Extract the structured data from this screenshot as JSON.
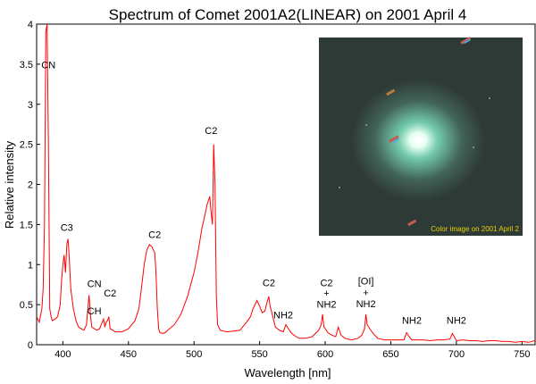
{
  "chart_data": {
    "type": "line",
    "title": "Spectrum of Comet 2001A2(LINEAR) on 2001 April 4",
    "xlabel": "Wavelength [nm]",
    "ylabel": "Relative intensity",
    "xlim": [
      380,
      760
    ],
    "ylim": [
      0,
      4
    ],
    "x_ticks": [
      400,
      450,
      500,
      550,
      600,
      650,
      700,
      750
    ],
    "y_ticks": [
      0,
      0.5,
      1,
      1.5,
      2,
      2.5,
      3,
      3.5,
      4
    ],
    "y_tick_labels": [
      "0",
      "0.5",
      "1",
      "1.5",
      "2",
      "2.5",
      "3",
      "3.5",
      "4"
    ],
    "grid": false,
    "legend": "none",
    "line_color": "#ff0000",
    "series": [
      {
        "x": [
          380,
          382,
          384,
          385,
          386,
          387,
          388,
          389,
          390,
          391,
          392,
          394,
          396,
          398,
          399,
          400,
          401,
          402,
          403,
          404,
          405,
          406,
          408,
          410,
          412,
          414,
          416,
          418,
          420,
          421,
          422,
          424,
          426,
          428,
          430,
          431,
          432,
          433,
          434,
          435,
          436,
          438,
          440,
          445,
          450,
          455,
          458,
          460,
          462,
          464,
          466,
          468,
          469,
          470,
          471,
          472,
          473,
          474,
          476,
          478,
          480,
          485,
          490,
          495,
          500,
          503,
          506,
          508,
          510,
          511,
          512,
          513,
          514,
          515,
          516,
          517,
          518,
          520,
          525,
          530,
          535,
          540,
          543,
          545,
          548,
          550,
          552,
          554,
          556,
          557,
          558,
          559,
          560,
          562,
          565,
          568,
          570,
          572,
          574,
          576,
          578,
          580,
          585,
          590,
          595,
          597,
          598,
          599,
          600,
          602,
          605,
          608,
          610,
          612,
          615,
          620,
          625,
          628,
          630,
          631,
          632,
          634,
          636,
          640,
          645,
          650,
          655,
          660,
          662,
          664,
          666,
          670,
          675,
          680,
          685,
          690,
          695,
          697,
          700,
          705,
          710,
          715,
          720,
          725,
          730,
          735,
          740,
          745,
          750,
          755,
          760
        ],
        "y": [
          0.35,
          0.28,
          0.45,
          0.7,
          1.5,
          3.9,
          4.5,
          2.5,
          0.45,
          0.35,
          0.3,
          0.32,
          0.35,
          0.5,
          0.8,
          1.0,
          1.12,
          0.9,
          1.25,
          1.32,
          1.05,
          0.7,
          0.45,
          0.3,
          0.22,
          0.2,
          0.18,
          0.25,
          0.62,
          0.38,
          0.22,
          0.2,
          0.18,
          0.2,
          0.28,
          0.32,
          0.22,
          0.28,
          0.3,
          0.35,
          0.2,
          0.18,
          0.16,
          0.16,
          0.2,
          0.3,
          0.45,
          0.72,
          1.0,
          1.18,
          1.25,
          1.22,
          1.18,
          1.15,
          0.9,
          0.45,
          0.2,
          0.15,
          0.14,
          0.15,
          0.18,
          0.25,
          0.38,
          0.6,
          0.9,
          1.15,
          1.45,
          1.6,
          1.75,
          1.8,
          1.85,
          1.65,
          1.5,
          2.5,
          2.0,
          0.6,
          0.25,
          0.18,
          0.16,
          0.17,
          0.18,
          0.28,
          0.35,
          0.45,
          0.55,
          0.48,
          0.4,
          0.42,
          0.55,
          0.6,
          0.48,
          0.42,
          0.35,
          0.22,
          0.18,
          0.16,
          0.25,
          0.2,
          0.15,
          0.12,
          0.1,
          0.08,
          0.08,
          0.1,
          0.18,
          0.25,
          0.38,
          0.22,
          0.2,
          0.15,
          0.12,
          0.1,
          0.22,
          0.12,
          0.08,
          0.06,
          0.08,
          0.12,
          0.2,
          0.38,
          0.25,
          0.2,
          0.15,
          0.08,
          0.06,
          0.06,
          0.06,
          0.06,
          0.15,
          0.1,
          0.06,
          0.06,
          0.06,
          0.05,
          0.06,
          0.06,
          0.07,
          0.14,
          0.05,
          0.06,
          0.05,
          0.05,
          0.04,
          0.05,
          0.05,
          0.04,
          0.04,
          0.03,
          0.04,
          0.03,
          0.05
        ]
      }
    ],
    "annotations": [
      {
        "text": "CN",
        "x": 389,
        "y": 3.45
      },
      {
        "text": "C3",
        "x": 403,
        "y": 1.42
      },
      {
        "text": "CN",
        "x": 424,
        "y": 0.72
      },
      {
        "text": "CH",
        "x": 424,
        "y": 0.38
      },
      {
        "text": "C2",
        "x": 436,
        "y": 0.6
      },
      {
        "text": "C2",
        "x": 470,
        "y": 1.33
      },
      {
        "text": "C2",
        "x": 513,
        "y": 2.63
      },
      {
        "text": "C2",
        "x": 557,
        "y": 0.73
      },
      {
        "text": "NH2",
        "x": 568,
        "y": 0.33
      },
      {
        "text": "C2",
        "x": 601,
        "y": 0.73
      },
      {
        "text": "+",
        "x": 601,
        "y": 0.6
      },
      {
        "text": "NH2",
        "x": 601,
        "y": 0.46
      },
      {
        "text": "[OI]",
        "x": 631,
        "y": 0.75
      },
      {
        "text": "+",
        "x": 631,
        "y": 0.61
      },
      {
        "text": "NH2",
        "x": 631,
        "y": 0.47
      },
      {
        "text": "NH2",
        "x": 666,
        "y": 0.26
      },
      {
        "text": "NH2",
        "x": 700,
        "y": 0.26
      }
    ]
  },
  "inset_photo": {
    "caption": "Color image on 2001 April 2",
    "background_color": "#2e3a36",
    "coma_color": "#7fe3c0"
  }
}
